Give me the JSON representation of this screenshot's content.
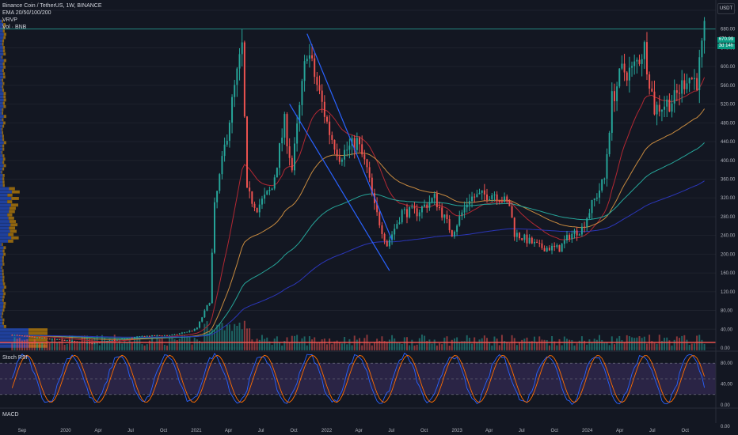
{
  "legend": {
    "symbol": "Binance Coin / TetherUS, 1W, BINANCE",
    "ema": "EMA 20/50/100/200",
    "vrvp": "VRVP",
    "vol": "Vol · BNB"
  },
  "currency": "USDT",
  "last_price": "670.99",
  "countdown": "3d 14h",
  "stoch_label": "Stoch RSI",
  "macd_label": "MACD",
  "colors": {
    "background": "#131722",
    "up": "#26a69a",
    "down": "#ef5350",
    "ema20": "#b22833",
    "ema50": "#c78a3f",
    "ema100": "#26a69a",
    "ema200": "#2b36b8",
    "trendline": "#2962ff",
    "stoch_k": "#2962ff",
    "stoch_d": "#ff6d00",
    "stoch_band": "#7e57c2"
  },
  "chart_data": {
    "type": "candlestick",
    "symbol": "BNBUSDT",
    "interval": "1W",
    "ylim": [
      0,
      720
    ],
    "y_ticks": [
      "720.00",
      "680.00",
      "640.00",
      "600.00",
      "560.00",
      "520.00",
      "480.00",
      "440.00",
      "400.00",
      "360.00",
      "320.00",
      "280.00",
      "240.00",
      "200.00",
      "160.00",
      "120.00",
      "80.00",
      "40.00",
      "0.00"
    ],
    "x_ticks": [
      "Sep",
      "2020",
      "Apr",
      "Jul",
      "Oct",
      "2021",
      "Apr",
      "Jul",
      "Oct",
      "2022",
      "Apr",
      "Jul",
      "Oct",
      "2023",
      "Apr",
      "Jul",
      "Oct",
      "2024",
      "Apr",
      "Jul",
      "Oct"
    ],
    "anchors": [
      {
        "date": "2019-08-01",
        "price": 28
      },
      {
        "date": "2020-03-15",
        "price": 10
      },
      {
        "date": "2020-08-01",
        "price": 25
      },
      {
        "date": "2020-11-01",
        "price": 28
      },
      {
        "date": "2021-01-01",
        "price": 40
      },
      {
        "date": "2021-02-07",
        "price": 100
      },
      {
        "date": "2021-02-21",
        "price": 300
      },
      {
        "date": "2021-04-15",
        "price": 540
      },
      {
        "date": "2021-05-09",
        "price": 640
      },
      {
        "date": "2021-05-23",
        "price": 330
      },
      {
        "date": "2021-06-20",
        "price": 300
      },
      {
        "date": "2021-08-01",
        "price": 340
      },
      {
        "date": "2021-09-05",
        "price": 480
      },
      {
        "date": "2021-09-26",
        "price": 380
      },
      {
        "date": "2021-11-07",
        "price": 640
      },
      {
        "date": "2021-12-05",
        "price": 560
      },
      {
        "date": "2022-01-09",
        "price": 460
      },
      {
        "date": "2022-02-06",
        "price": 410
      },
      {
        "date": "2022-03-27",
        "price": 440
      },
      {
        "date": "2022-04-24",
        "price": 380
      },
      {
        "date": "2022-05-15",
        "price": 300
      },
      {
        "date": "2022-06-19",
        "price": 220
      },
      {
        "date": "2022-07-31",
        "price": 290
      },
      {
        "date": "2022-09-11",
        "price": 290
      },
      {
        "date": "2022-10-30",
        "price": 320
      },
      {
        "date": "2022-12-18",
        "price": 245
      },
      {
        "date": "2023-02-05",
        "price": 320
      },
      {
        "date": "2023-04-16",
        "price": 330
      },
      {
        "date": "2023-05-28",
        "price": 305
      },
      {
        "date": "2023-06-11",
        "price": 245
      },
      {
        "date": "2023-08-20",
        "price": 215
      },
      {
        "date": "2023-10-15",
        "price": 212
      },
      {
        "date": "2023-11-12",
        "price": 240
      },
      {
        "date": "2023-12-17",
        "price": 255
      },
      {
        "date": "2024-01-14",
        "price": 305
      },
      {
        "date": "2024-02-18",
        "price": 360
      },
      {
        "date": "2024-03-10",
        "price": 530
      },
      {
        "date": "2024-04-07",
        "price": 590
      },
      {
        "date": "2024-05-05",
        "price": 590
      },
      {
        "date": "2024-06-09",
        "price": 640
      },
      {
        "date": "2024-07-07",
        "price": 510
      },
      {
        "date": "2024-08-04",
        "price": 520
      },
      {
        "date": "2024-09-01",
        "price": 530
      },
      {
        "date": "2024-10-06",
        "price": 580
      },
      {
        "date": "2024-11-03",
        "price": 570
      },
      {
        "date": "2024-11-24",
        "price": 670.99
      }
    ],
    "trendlines": [
      {
        "from": {
          "date": "2021-11-07",
          "price": 670
        },
        "to": {
          "date": "2022-07-03",
          "price": 230
        }
      },
      {
        "from": {
          "date": "2021-09-19",
          "price": 520
        },
        "to": {
          "date": "2022-06-26",
          "price": 165
        }
      }
    ],
    "horizontal_lines": [
      {
        "price": 680,
        "color": "#26a69a"
      },
      {
        "price": 12,
        "color": "#ef5350"
      }
    ],
    "stoch_rsi": {
      "ylim": [
        0,
        100
      ],
      "y_ticks": [
        "80.00",
        "40.00",
        "0.00"
      ],
      "bands": [
        20,
        80
      ]
    },
    "macd": {
      "y_ticks": [
        "0.00"
      ]
    }
  }
}
